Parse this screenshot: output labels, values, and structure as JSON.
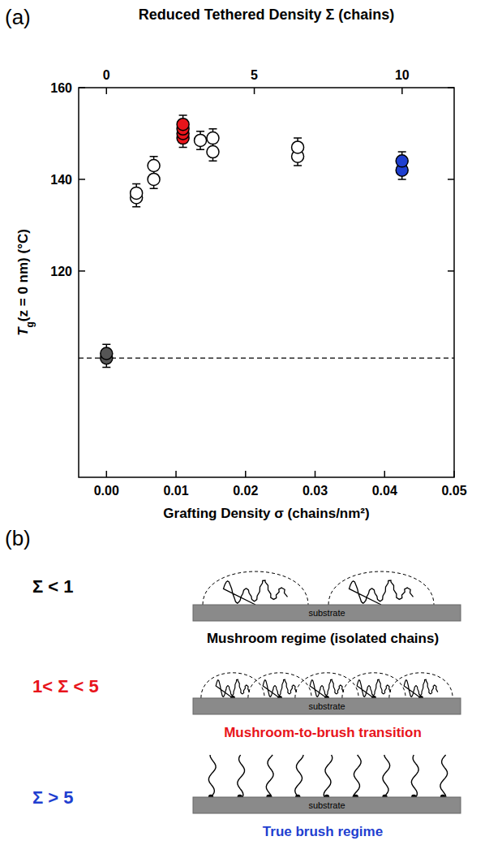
{
  "chart_data": {
    "type": "scatter",
    "panel_label": "(a)",
    "xlabel": "Grafting Density σ  (chains/nm²)",
    "x2label": "Reduced Tethered Density Σ  (chains)",
    "ylabel": [
      "T",
      "g",
      "(z = 0 nm)  (°C)"
    ],
    "x": [
      0,
      0,
      0.0043,
      0.0043,
      0.0068,
      0.0068,
      0.011,
      0.011,
      0.011,
      0.011,
      0.0135,
      0.0153,
      0.0153,
      0.0275,
      0.0275,
      0.0425,
      0.0425
    ],
    "values": [
      101,
      102,
      136,
      137,
      140,
      143,
      149,
      150,
      151,
      152,
      148.5,
      146,
      149,
      145,
      147,
      142,
      144
    ],
    "errors": [
      2,
      2,
      2,
      2,
      2,
      2,
      2,
      2,
      2,
      2,
      2,
      2,
      2,
      2,
      2,
      2,
      2
    ],
    "colors": [
      "#555555",
      "#555555",
      "#ffffff",
      "#ffffff",
      "#ffffff",
      "#ffffff",
      "#e8141b",
      "#e8141b",
      "#e8141b",
      "#e8141b",
      "#ffffff",
      "#ffffff",
      "#ffffff",
      "#ffffff",
      "#ffffff",
      "#1f3fd0",
      "#1f3fd0"
    ],
    "marker": "circle",
    "reference_line": 101,
    "xlim": [
      -0.004,
      0.05
    ],
    "xticks": [
      {
        "value": 0,
        "label": "0.00"
      },
      0.01,
      0.02,
      0.03,
      0.04,
      0.05
    ],
    "x2lim": [
      -0.94,
      11.76
    ],
    "x2ticks": [
      0,
      5,
      10
    ],
    "ylim": [
      75,
      160
    ],
    "yticks": [
      120,
      140,
      160
    ],
    "grid": false
  },
  "diagram": {
    "panel_label": "(b)",
    "substrate_label": "substrate",
    "regimes": [
      {
        "label": "Σ < 1",
        "caption": "Mushroom regime (isolated chains)",
        "color": "#000000"
      },
      {
        "label": "1< Σ < 5",
        "caption": "Mushroom-to-brush transition",
        "color": "#e8141b"
      },
      {
        "label": "Σ > 5",
        "caption": "True brush regime",
        "color": "#1f3fd0"
      }
    ]
  }
}
